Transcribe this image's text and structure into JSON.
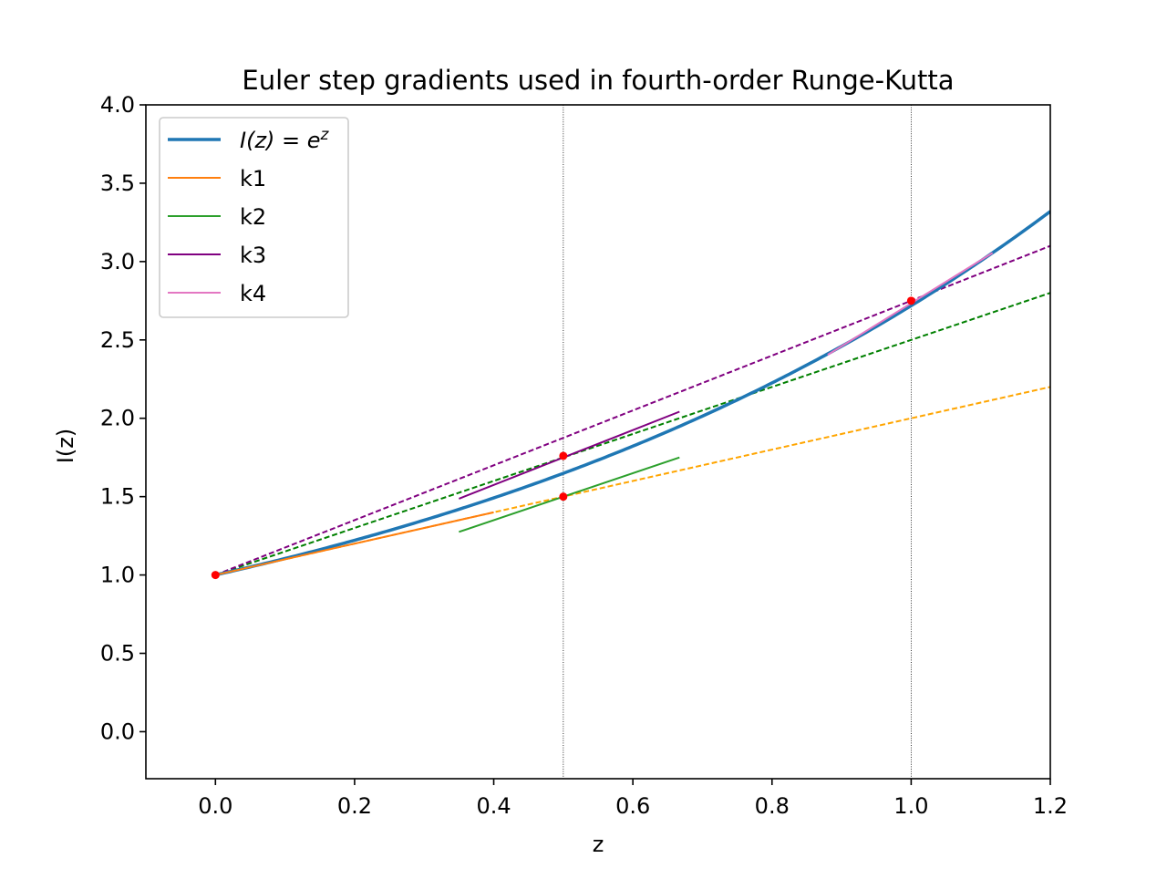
{
  "chart_data": {
    "type": "line",
    "title": "Euler step gradients used in fourth-order Runge-Kutta",
    "xlabel": "z",
    "ylabel": "I(z)",
    "xlim": [
      -0.1,
      1.2
    ],
    "ylim": [
      -0.3,
      4.0
    ],
    "xticks": [
      "0.0",
      "0.2",
      "0.4",
      "0.6",
      "0.8",
      "1.0",
      "1.2"
    ],
    "yticks": [
      "0.0",
      "0.5",
      "1.0",
      "1.5",
      "2.0",
      "2.5",
      "3.0",
      "3.5",
      "4.0"
    ],
    "grid": false,
    "legend_location": "upper-left",
    "curve": {
      "name": "I(z) = e^z",
      "color": "#1f77b4",
      "function": "exp",
      "x_range": [
        0.0,
        1.2
      ]
    },
    "segments": [
      {
        "name": "k1",
        "color": "#ff7f0e",
        "x": [
          0.0,
          0.4
        ],
        "y": [
          1.0,
          1.4
        ]
      },
      {
        "name": "k2",
        "color": "#2ca02c",
        "x": [
          0.35,
          0.667
        ],
        "y": [
          1.275,
          1.75
        ]
      },
      {
        "name": "k3",
        "color": "#800080",
        "x": [
          0.35,
          0.667
        ],
        "y": [
          1.487,
          2.042
        ]
      },
      {
        "name": "k4",
        "color": "#e377c2",
        "x": [
          0.88,
          1.117
        ],
        "y": [
          2.405,
          3.055
        ]
      }
    ],
    "dashed_lines": [
      {
        "color": "#ffa500",
        "x": [
          0.0,
          1.2
        ],
        "y": [
          1.0,
          2.2
        ]
      },
      {
        "color": "#008000",
        "x": [
          0.0,
          1.2
        ],
        "y": [
          1.0,
          2.8
        ]
      },
      {
        "color": "#800080",
        "x": [
          0.0,
          1.2
        ],
        "y": [
          1.0,
          3.1
        ]
      }
    ],
    "vertical_lines": [
      0.5,
      1.0
    ],
    "points": [
      {
        "x": 0.0,
        "y": 1.0
      },
      {
        "x": 0.5,
        "y": 1.5
      },
      {
        "x": 0.5,
        "y": 1.76
      },
      {
        "x": 1.0,
        "y": 2.75
      }
    ],
    "legend": [
      {
        "label_main": "I(z) = e",
        "label_sup": "z",
        "color": "#1f77b4",
        "width": 3.5
      },
      {
        "label_main": "k1",
        "label_sup": "",
        "color": "#ff7f0e",
        "width": 2
      },
      {
        "label_main": "k2",
        "label_sup": "",
        "color": "#2ca02c",
        "width": 2
      },
      {
        "label_main": "k3",
        "label_sup": "",
        "color": "#800080",
        "width": 2
      },
      {
        "label_main": "k4",
        "label_sup": "",
        "color": "#e377c2",
        "width": 2
      }
    ]
  }
}
